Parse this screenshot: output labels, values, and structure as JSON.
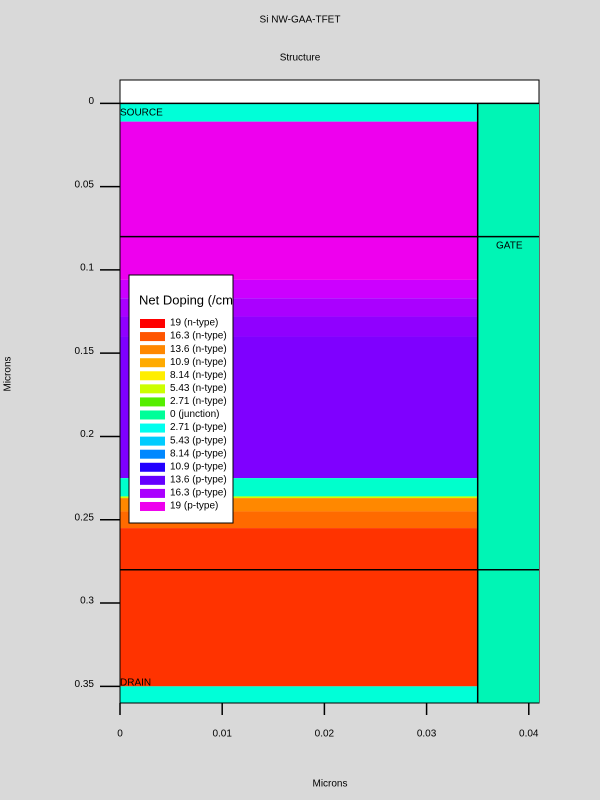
{
  "chart_data": {
    "type": "structure",
    "title": "Si NW-GAA-TFET",
    "subtitle": "Structure",
    "x_label": "Microns",
    "y_label": "Microns",
    "xlim": [
      0,
      0.041
    ],
    "ylim": [
      -0.014,
      0.36
    ],
    "xticks": [
      0,
      0.01,
      0.02,
      0.03,
      0.04
    ],
    "yticks": [
      0,
      0.05,
      0.1,
      0.15,
      0.2,
      0.25,
      0.3,
      0.35
    ],
    "y_inverted": true,
    "regions": [
      {
        "x": [
          0,
          0.035
        ],
        "y": [
          0,
          0.011
        ],
        "color": "#00ffd8"
      },
      {
        "x": [
          0,
          0.035
        ],
        "y": [
          0.011,
          0.106
        ],
        "color": "#ee00ee"
      },
      {
        "x": [
          0,
          0.035
        ],
        "y": [
          0.106,
          0.117
        ],
        "color": "#cc00ff"
      },
      {
        "x": [
          0,
          0.035
        ],
        "y": [
          0.117,
          0.128
        ],
        "color": "#aa00ff"
      },
      {
        "x": [
          0,
          0.035
        ],
        "y": [
          0.128,
          0.14
        ],
        "color": "#9000ff"
      },
      {
        "x": [
          0,
          0.035
        ],
        "y": [
          0.14,
          0.225
        ],
        "color": "#7f00ff"
      },
      {
        "x": [
          0,
          0.035
        ],
        "y": [
          0.225,
          0.236
        ],
        "color": "#00ffcc"
      },
      {
        "x": [
          0,
          0.035
        ],
        "y": [
          0.236,
          0.237
        ],
        "color": "#ccff00"
      },
      {
        "x": [
          0,
          0.035
        ],
        "y": [
          0.237,
          0.245
        ],
        "color": "#ff8800"
      },
      {
        "x": [
          0,
          0.035
        ],
        "y": [
          0.245,
          0.255
        ],
        "color": "#ff6a00"
      },
      {
        "x": [
          0,
          0.035
        ],
        "y": [
          0.255,
          0.35
        ],
        "color": "#ff3300"
      },
      {
        "x": [
          0,
          0.035
        ],
        "y": [
          0.35,
          0.36
        ],
        "color": "#00ffd8"
      },
      {
        "x": [
          0.035,
          0.041
        ],
        "y": [
          0,
          0.36
        ],
        "color": "#00f5b5"
      },
      {
        "x": [
          0.0395,
          0.041
        ],
        "y": [
          0.08,
          0.28
        ],
        "color": "#00f5b5"
      }
    ],
    "boundaries": [
      {
        "x": [
          0,
          0.041
        ],
        "y": [
          0,
          0
        ]
      },
      {
        "x": [
          0,
          0.041
        ],
        "y": [
          0.08,
          0.08
        ]
      },
      {
        "x": [
          0,
          0.041
        ],
        "y": [
          0.28,
          0.28
        ]
      },
      {
        "x": [
          0.035,
          0.035
        ],
        "y": [
          0,
          0.36
        ]
      }
    ],
    "region_labels": [
      "SOURCE",
      "GATE",
      "DRAIN"
    ],
    "legend_title": "Net Doping (/cm",
    "legend": [
      {
        "label": "19 (n-type)",
        "color": "#ff0000"
      },
      {
        "label": "16.3 (n-type)",
        "color": "#ff5500"
      },
      {
        "label": "13.6 (n-type)",
        "color": "#ff8800"
      },
      {
        "label": "10.9 (n-type)",
        "color": "#ffaa00"
      },
      {
        "label": "8.14 (n-type)",
        "color": "#ffee00"
      },
      {
        "label": "5.43 (n-type)",
        "color": "#ccff00"
      },
      {
        "label": "2.71 (n-type)",
        "color": "#55ee00"
      },
      {
        "label": "0 (junction)",
        "color": "#00ff99"
      },
      {
        "label": "2.71 (p-type)",
        "color": "#00ffee"
      },
      {
        "label": "5.43 (p-type)",
        "color": "#00ccff"
      },
      {
        "label": "8.14 (p-type)",
        "color": "#0088ff"
      },
      {
        "label": "10.9 (p-type)",
        "color": "#2200ff"
      },
      {
        "label": "13.6 (p-type)",
        "color": "#6600ff"
      },
      {
        "label": "16.3 (p-type)",
        "color": "#aa00ff"
      },
      {
        "label": "19 (p-type)",
        "color": "#ee00ee"
      }
    ]
  }
}
